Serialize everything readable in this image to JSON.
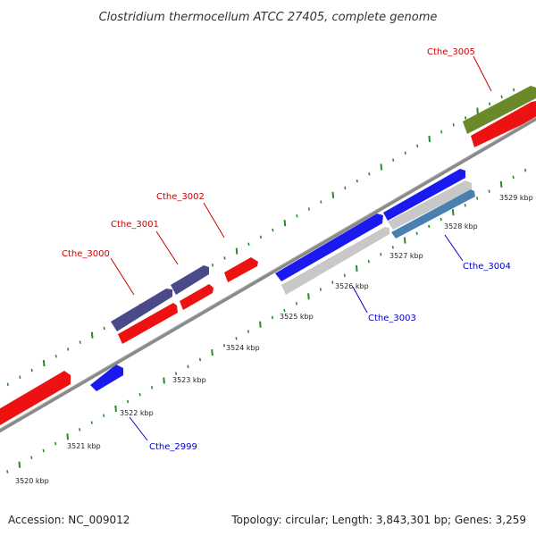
{
  "title": "Clostridium thermocellum ATCC 27405, complete genome",
  "footer": {
    "accession": "Accession: NC_009012",
    "summary": "Topology: circular; Length: 3,843,301 bp; Genes: 3,259"
  },
  "colors": {
    "backbone": "#8a8a8a",
    "tick": "#2a8a2a",
    "forward_label": "#cc0000",
    "reverse_label": "#0000cc",
    "red": "#ee1111",
    "blue": "#1a1aee",
    "purple": "#4a4a8a",
    "olive": "#6a8a2a",
    "gray": "#c8c8c8",
    "steel": "#4a80b0"
  },
  "kbp_labels": [
    "3520 kbp",
    "3521 kbp",
    "3522 kbp",
    "3523 kbp",
    "3524 kbp",
    "3525 kbp",
    "3526 kbp",
    "3527 kbp",
    "3528 kbp",
    "3529 kbp"
  ],
  "genes": [
    {
      "name": "Cthe_2999",
      "strand": "reverse"
    },
    {
      "name": "Cthe_3000",
      "strand": "forward"
    },
    {
      "name": "Cthe_3001",
      "strand": "forward"
    },
    {
      "name": "Cthe_3002",
      "strand": "forward"
    },
    {
      "name": "Cthe_3003",
      "strand": "reverse"
    },
    {
      "name": "Cthe_3004",
      "strand": "reverse"
    },
    {
      "name": "Cthe_3005",
      "strand": "forward"
    }
  ]
}
